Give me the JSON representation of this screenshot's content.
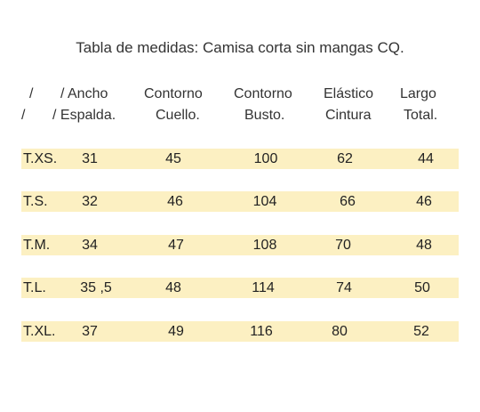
{
  "title": "Tabla de medidas: Camisa corta sin mangas CQ.",
  "header": {
    "row1": [
      "/",
      "/ Ancho",
      "Contorno",
      "Contorno",
      "Elástico",
      "Largo"
    ],
    "row2": [
      "/",
      "/ Espalda.",
      "Cuello.",
      "Busto.",
      "Cintura",
      "Total."
    ]
  },
  "rows": [
    {
      "size": "T.XS.",
      "values": [
        "31",
        "45",
        "100",
        "62",
        "44"
      ]
    },
    {
      "size": "T.S.",
      "values": [
        "32",
        "46",
        "104",
        "66",
        "46"
      ]
    },
    {
      "size": "T.M.",
      "values": [
        "34",
        "47",
        "108",
        "70",
        "48"
      ]
    },
    {
      "size": "T.L.",
      "values": [
        "35 ,5",
        "48",
        "114",
        "74",
        "50"
      ]
    },
    {
      "size": "T.XL.",
      "values": [
        "37",
        "49",
        "116",
        "80",
        "52"
      ]
    }
  ],
  "colors": {
    "row_highlight": "#fcf0c2",
    "text": "#222222"
  }
}
